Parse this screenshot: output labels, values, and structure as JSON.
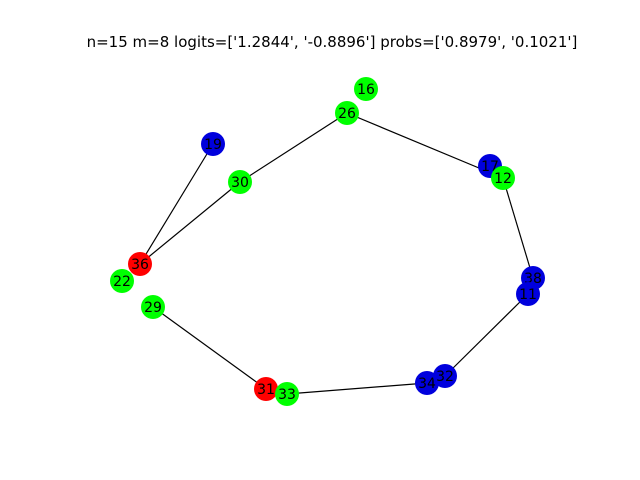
{
  "title": "n=15 m=8 logits=['1.2844', '-0.8896'] probs=['0.8979', '0.1021']",
  "colors": {
    "green": "#00ff00",
    "blue": "#0000dd",
    "red": "#ff0000",
    "edge": "#000000"
  },
  "nodes": [
    {
      "id": "16",
      "color": "green"
    },
    {
      "id": "26",
      "color": "green"
    },
    {
      "id": "19",
      "color": "blue"
    },
    {
      "id": "30",
      "color": "green"
    },
    {
      "id": "17",
      "color": "blue"
    },
    {
      "id": "12",
      "color": "green"
    },
    {
      "id": "36",
      "color": "red"
    },
    {
      "id": "22",
      "color": "green"
    },
    {
      "id": "29",
      "color": "green"
    },
    {
      "id": "38",
      "color": "blue"
    },
    {
      "id": "11",
      "color": "blue"
    },
    {
      "id": "31",
      "color": "red"
    },
    {
      "id": "33",
      "color": "green"
    },
    {
      "id": "34",
      "color": "blue"
    },
    {
      "id": "32",
      "color": "blue"
    }
  ],
  "edges": [
    [
      "26",
      "12"
    ],
    [
      "26",
      "30"
    ],
    [
      "30",
      "36"
    ],
    [
      "19",
      "36"
    ],
    [
      "12",
      "38"
    ],
    [
      "11",
      "32"
    ],
    [
      "29",
      "31"
    ],
    [
      "33",
      "34"
    ]
  ]
}
